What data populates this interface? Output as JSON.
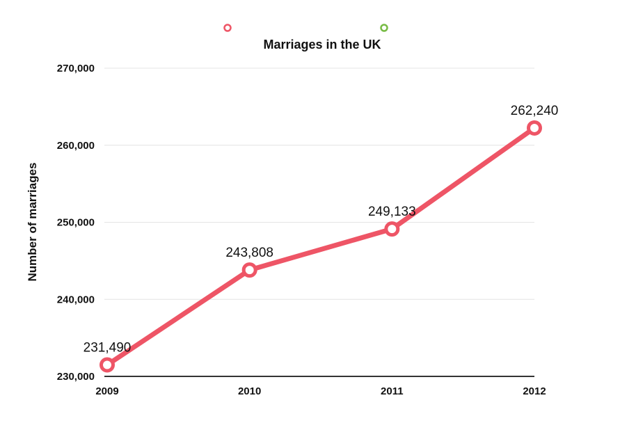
{
  "chart_data": {
    "type": "line",
    "title": "Marriages in the UK",
    "xlabel": "",
    "ylabel": "Number of marriages",
    "categories": [
      "2009",
      "2010",
      "2011",
      "2012"
    ],
    "series": [
      {
        "name": "",
        "color": "#ee5566",
        "values": [
          231490,
          243808,
          249133,
          262240
        ],
        "data_labels": [
          "231,490",
          "243,808",
          "249,133",
          "262,240"
        ]
      }
    ],
    "legend": {
      "position": "top",
      "entries": [
        {
          "label": "",
          "color": "#ee5566"
        },
        {
          "label": "",
          "color": "#77bb44"
        }
      ]
    },
    "ylim": [
      230000,
      270000
    ],
    "yticks": [
      230000,
      240000,
      250000,
      260000,
      270000
    ],
    "ytick_labels": [
      "230,000",
      "240,000",
      "250,000",
      "260,000",
      "270,000"
    ],
    "grid": true
  }
}
